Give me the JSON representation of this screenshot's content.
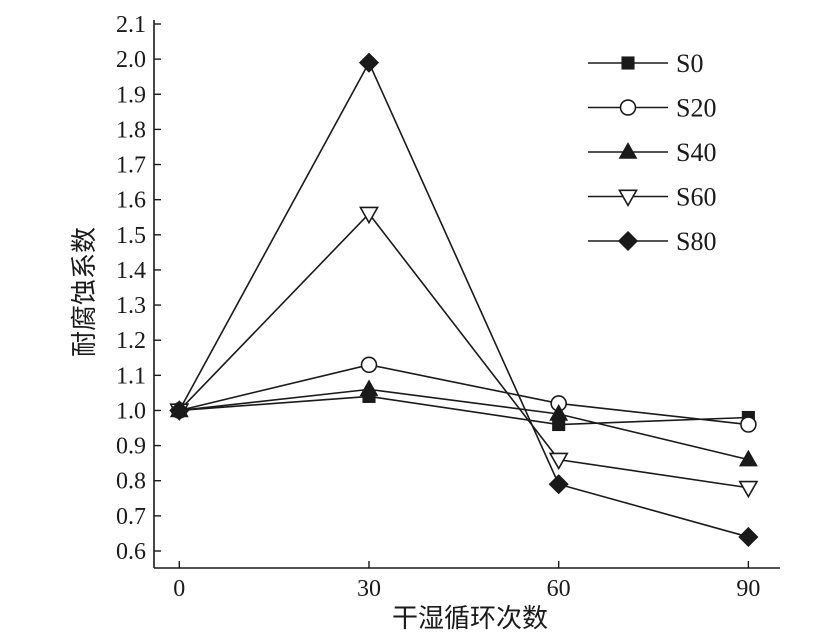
{
  "chart_data": {
    "type": "line",
    "title": "",
    "xlabel": "干湿循环次数",
    "ylabel": "耐腐蚀系数",
    "x": [
      0,
      30,
      60,
      90
    ],
    "xticks": [
      "0",
      "30",
      "60",
      "90"
    ],
    "xlim": [
      -4,
      95
    ],
    "ylim": [
      0.55,
      2.1
    ],
    "yticks": [
      "0.6",
      "0.7",
      "0.8",
      "0.9",
      "1.0",
      "1.1",
      "1.2",
      "1.3",
      "1.4",
      "1.5",
      "1.6",
      "1.7",
      "1.8",
      "1.9",
      "2.0",
      "2.1"
    ],
    "grid": false,
    "legend_position": "top-right",
    "series": [
      {
        "name": "S0",
        "marker": "square-filled",
        "values": [
          1.0,
          1.04,
          0.96,
          0.98
        ]
      },
      {
        "name": "S20",
        "marker": "circle-open",
        "values": [
          1.0,
          1.13,
          1.02,
          0.96
        ]
      },
      {
        "name": "S40",
        "marker": "triangle-up-filled",
        "values": [
          1.0,
          1.06,
          0.99,
          0.86
        ]
      },
      {
        "name": "S60",
        "marker": "triangle-down-open",
        "values": [
          1.0,
          1.56,
          0.86,
          0.78
        ]
      },
      {
        "name": "S80",
        "marker": "diamond-filled",
        "values": [
          1.0,
          1.99,
          0.79,
          0.64
        ]
      }
    ],
    "colors": {
      "line": "#1a1a1a",
      "background": "#ffffff"
    }
  }
}
